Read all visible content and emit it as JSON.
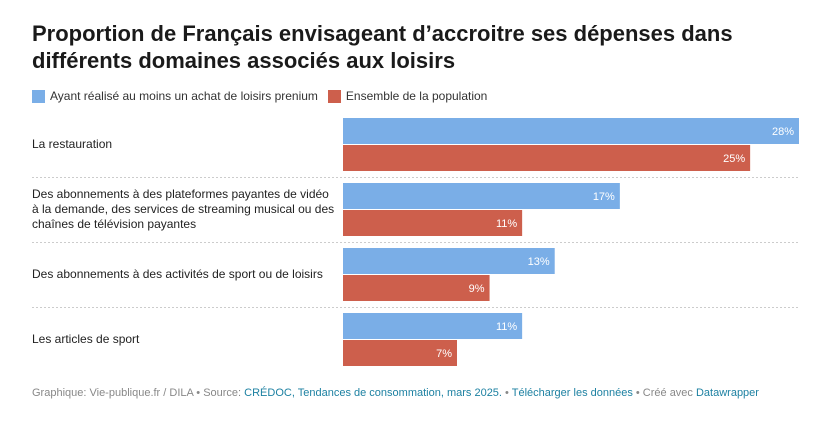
{
  "title": "Proportion de Français envisageant d’accroitre ses dépenses dans différents domaines associés aux loisirs",
  "colors": {
    "series1": "#7aaee7",
    "series2": "#cd5f4c"
  },
  "chart_data": {
    "type": "bar",
    "orientation": "horizontal",
    "title": "Proportion de Français envisageant d’accroitre ses dépenses dans différents domaines associés aux loisirs",
    "categories": [
      [
        "La restauration"
      ],
      [
        "Des abonnements à des plateformes payantes de vidéo",
        "à la demande, des services de streaming musical ou des",
        "chaînes de télévision payantes"
      ],
      [
        "Des abonnements à des activités de sport ou de loisirs"
      ],
      [
        "Les articles de sport"
      ]
    ],
    "series": [
      {
        "name": "Ayant réalisé au moins un achat de loisirs prenium",
        "values": [
          28,
          17,
          13,
          11
        ]
      },
      {
        "name": "Ensemble de la population",
        "values": [
          25,
          11,
          9,
          7
        ]
      }
    ],
    "value_suffix": "%",
    "xlim": [
      0,
      28
    ],
    "legend": "top-left",
    "grid": false
  },
  "footer": {
    "prefix": "Graphique: Vie-publique.fr / DILA • Source: ",
    "source": "CRÉDOC, Tendances de consommation, mars 2025.",
    "sep": " • ",
    "download": "Télécharger les données",
    "created": " • Créé avec ",
    "tool": "Datawrapper"
  }
}
